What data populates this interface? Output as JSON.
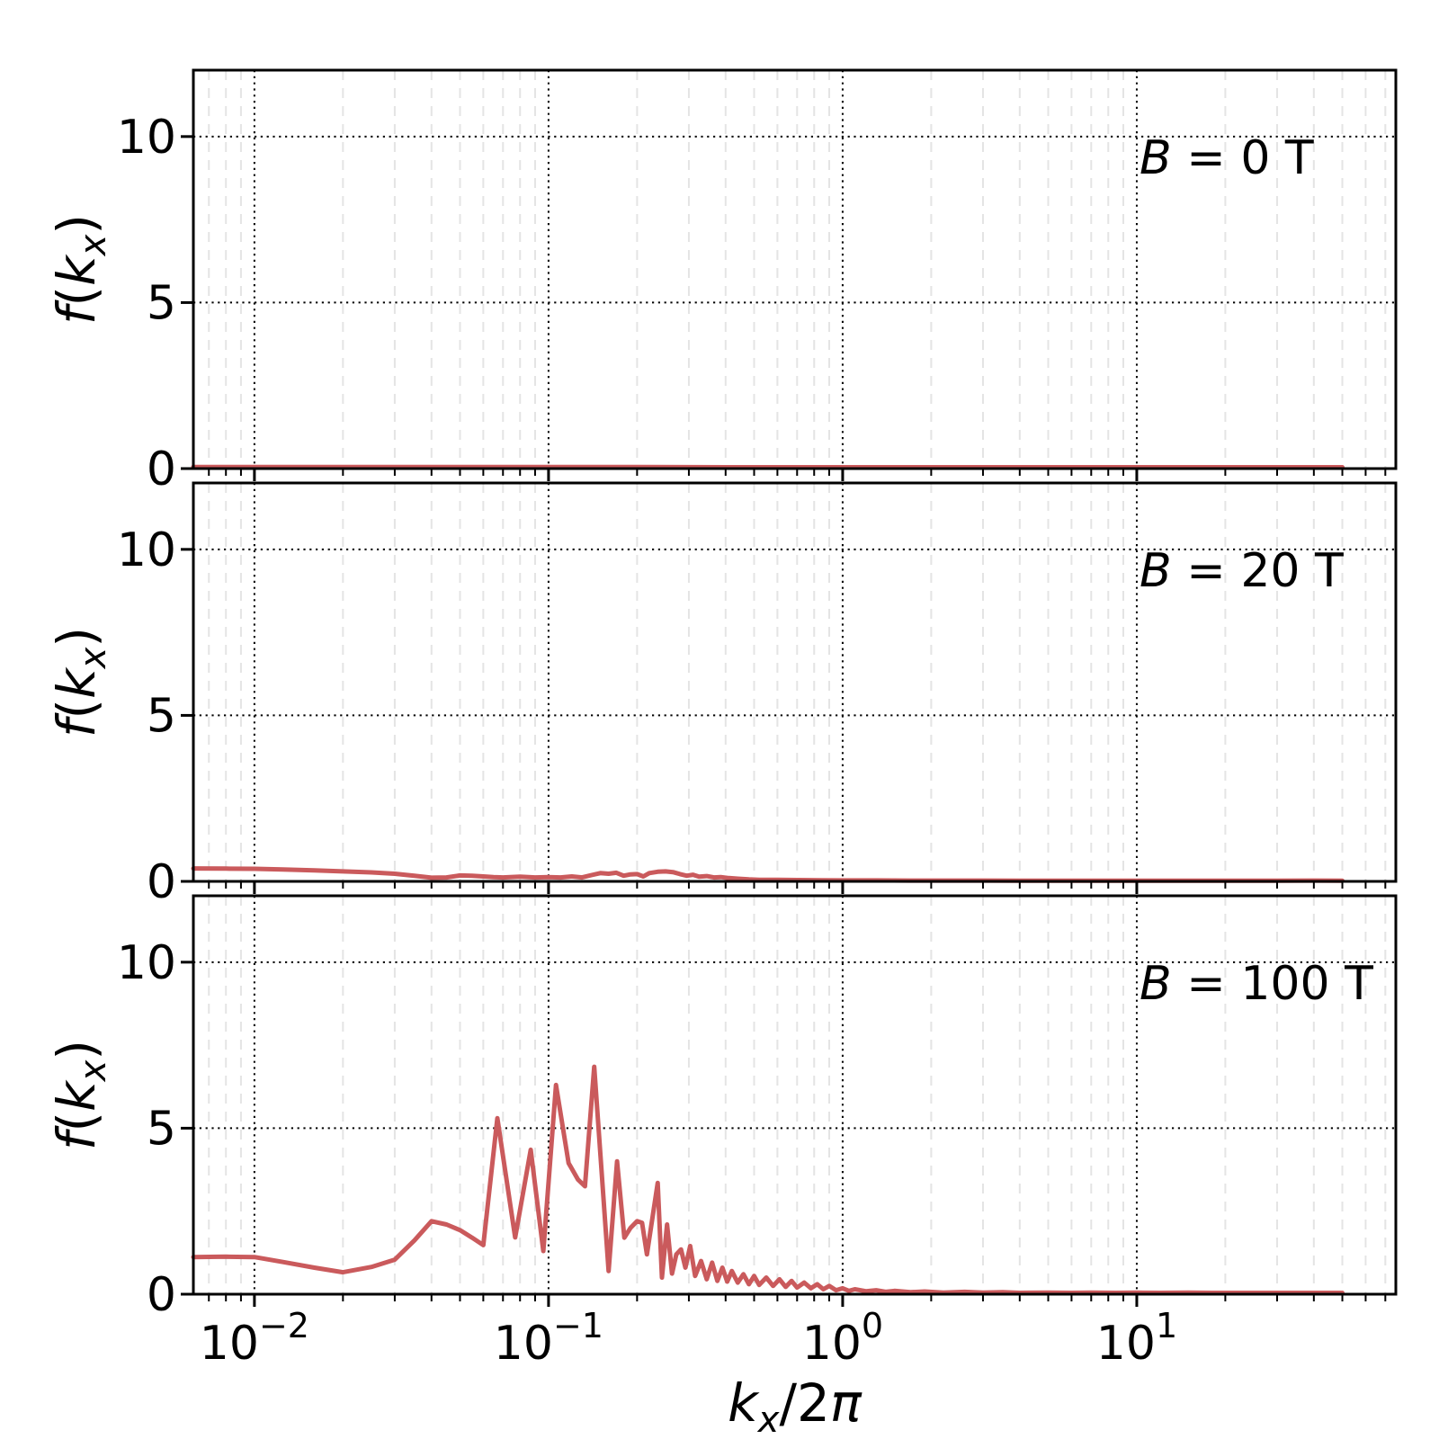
{
  "figure": {
    "background": "#ffffff",
    "axis_color": "#000000",
    "line_color": "#ca5a5c",
    "grid_major_color": "#000000",
    "grid_minor_color": "#e4e4e4",
    "xlabel_text": "k_x/2π",
    "ylabel_text": "f(k_x)",
    "xlabel_parts": [
      {
        "t": "k",
        "i": 1
      },
      {
        "t": "x",
        "i": 1,
        "s": "sub"
      },
      {
        "t": "/2",
        "i": 0
      },
      {
        "t": "π",
        "i": 1
      }
    ],
    "ylabel_parts": [
      {
        "t": "f",
        "i": 1
      },
      {
        "t": "(",
        "i": 0
      },
      {
        "t": "k",
        "i": 1
      },
      {
        "t": "x",
        "i": 1,
        "s": "sub"
      },
      {
        "t": ")",
        "i": 0
      }
    ],
    "x_ticks": [
      {
        "value": 0.01,
        "mantissa": "10",
        "exp": "−2"
      },
      {
        "value": 0.1,
        "mantissa": "10",
        "exp": "−1"
      },
      {
        "value": 1,
        "mantissa": "10",
        "exp": "0"
      },
      {
        "value": 10,
        "mantissa": "10",
        "exp": "1"
      }
    ],
    "y_ticks": [
      {
        "value": 0,
        "label": "0"
      },
      {
        "value": 5,
        "label": "5"
      },
      {
        "value": 10,
        "label": "10"
      }
    ]
  },
  "chart_data": [
    {
      "type": "line",
      "xscale": "log",
      "xlim": [
        0.0062,
        76
      ],
      "ylim": [
        0,
        12
      ],
      "grid": true,
      "annotation_text": "B = 0 T",
      "annotation_parts": [
        {
          "t": "B",
          "i": 1
        },
        {
          "t": " = 0 T",
          "i": 0
        }
      ],
      "points": [
        [
          0.0062,
          0.05
        ],
        [
          0.01,
          0.05
        ],
        [
          0.02,
          0.05
        ],
        [
          0.04,
          0.05
        ],
        [
          0.07,
          0.045
        ],
        [
          0.1,
          0.05
        ],
        [
          0.2,
          0.045
        ],
        [
          0.4,
          0.04
        ],
        [
          0.7,
          0.04
        ],
        [
          1,
          0.04
        ],
        [
          2,
          0.04
        ],
        [
          4,
          0.04
        ],
        [
          7,
          0.04
        ],
        [
          10,
          0.04
        ],
        [
          20,
          0.04
        ],
        [
          35,
          0.04
        ],
        [
          50,
          0.04
        ]
      ]
    },
    {
      "type": "line",
      "xscale": "log",
      "xlim": [
        0.0062,
        76
      ],
      "ylim": [
        0,
        12
      ],
      "grid": true,
      "annotation_text": "B = 20 T",
      "annotation_parts": [
        {
          "t": "B",
          "i": 1
        },
        {
          "t": " = 20 T",
          "i": 0
        }
      ],
      "points": [
        [
          0.0062,
          0.39
        ],
        [
          0.008,
          0.385
        ],
        [
          0.01,
          0.38
        ],
        [
          0.0125,
          0.36
        ],
        [
          0.016,
          0.33
        ],
        [
          0.02,
          0.3
        ],
        [
          0.025,
          0.27
        ],
        [
          0.03,
          0.23
        ],
        [
          0.035,
          0.17
        ],
        [
          0.04,
          0.11
        ],
        [
          0.045,
          0.12
        ],
        [
          0.05,
          0.18
        ],
        [
          0.055,
          0.17
        ],
        [
          0.06,
          0.15
        ],
        [
          0.065,
          0.13
        ],
        [
          0.07,
          0.12
        ],
        [
          0.08,
          0.14
        ],
        [
          0.09,
          0.12
        ],
        [
          0.1,
          0.13
        ],
        [
          0.11,
          0.12
        ],
        [
          0.12,
          0.15
        ],
        [
          0.13,
          0.12
        ],
        [
          0.14,
          0.19
        ],
        [
          0.15,
          0.25
        ],
        [
          0.16,
          0.23
        ],
        [
          0.17,
          0.26
        ],
        [
          0.18,
          0.17
        ],
        [
          0.19,
          0.21
        ],
        [
          0.2,
          0.22
        ],
        [
          0.21,
          0.15
        ],
        [
          0.22,
          0.25
        ],
        [
          0.235,
          0.29
        ],
        [
          0.25,
          0.3
        ],
        [
          0.265,
          0.28
        ],
        [
          0.28,
          0.22
        ],
        [
          0.295,
          0.17
        ],
        [
          0.31,
          0.2
        ],
        [
          0.325,
          0.14
        ],
        [
          0.345,
          0.16
        ],
        [
          0.365,
          0.12
        ],
        [
          0.385,
          0.13
        ],
        [
          0.41,
          0.1
        ],
        [
          0.44,
          0.08
        ],
        [
          0.48,
          0.06
        ],
        [
          0.52,
          0.05
        ],
        [
          0.6,
          0.045
        ],
        [
          0.7,
          0.04
        ],
        [
          0.85,
          0.035
        ],
        [
          1.0,
          0.03
        ],
        [
          1.3,
          0.03
        ],
        [
          1.7,
          0.025
        ],
        [
          2.2,
          0.025
        ],
        [
          3.0,
          0.025
        ],
        [
          4.0,
          0.02
        ],
        [
          6.0,
          0.02
        ],
        [
          8.0,
          0.02
        ],
        [
          10,
          0.02
        ],
        [
          15,
          0.02
        ],
        [
          20,
          0.02
        ],
        [
          30,
          0.02
        ],
        [
          40,
          0.025
        ],
        [
          50,
          0.02
        ]
      ]
    },
    {
      "type": "line",
      "xscale": "log",
      "xlim": [
        0.0062,
        76
      ],
      "ylim": [
        0,
        12
      ],
      "grid": true,
      "annotation_text": "B = 100 T",
      "annotation_parts": [
        {
          "t": "B",
          "i": 1
        },
        {
          "t": " = 100 T",
          "i": 0
        }
      ],
      "points": [
        [
          0.0062,
          1.12
        ],
        [
          0.008,
          1.13
        ],
        [
          0.01,
          1.12
        ],
        [
          0.0125,
          0.97
        ],
        [
          0.016,
          0.8
        ],
        [
          0.02,
          0.66
        ],
        [
          0.025,
          0.82
        ],
        [
          0.03,
          1.04
        ],
        [
          0.035,
          1.62
        ],
        [
          0.04,
          2.2
        ],
        [
          0.045,
          2.1
        ],
        [
          0.05,
          1.93
        ],
        [
          0.055,
          1.7
        ],
        [
          0.06,
          1.48
        ],
        [
          0.067,
          5.3
        ],
        [
          0.077,
          1.71
        ],
        [
          0.087,
          4.35
        ],
        [
          0.096,
          1.3
        ],
        [
          0.106,
          6.3
        ],
        [
          0.117,
          3.95
        ],
        [
          0.126,
          3.45
        ],
        [
          0.133,
          3.25
        ],
        [
          0.143,
          6.85
        ],
        [
          0.16,
          0.7
        ],
        [
          0.171,
          4.0
        ],
        [
          0.181,
          1.7
        ],
        [
          0.19,
          2.0
        ],
        [
          0.2,
          2.2
        ],
        [
          0.208,
          2.15
        ],
        [
          0.216,
          1.2
        ],
        [
          0.235,
          3.35
        ],
        [
          0.243,
          0.5
        ],
        [
          0.253,
          2.1
        ],
        [
          0.263,
          0.62
        ],
        [
          0.272,
          1.2
        ],
        [
          0.282,
          1.35
        ],
        [
          0.292,
          0.8
        ],
        [
          0.303,
          1.45
        ],
        [
          0.315,
          0.55
        ],
        [
          0.33,
          1.0
        ],
        [
          0.345,
          0.45
        ],
        [
          0.36,
          0.95
        ],
        [
          0.375,
          0.4
        ],
        [
          0.39,
          0.8
        ],
        [
          0.405,
          0.38
        ],
        [
          0.42,
          0.7
        ],
        [
          0.44,
          0.35
        ],
        [
          0.46,
          0.6
        ],
        [
          0.48,
          0.3
        ],
        [
          0.5,
          0.55
        ],
        [
          0.52,
          0.28
        ],
        [
          0.55,
          0.5
        ],
        [
          0.58,
          0.25
        ],
        [
          0.61,
          0.45
        ],
        [
          0.64,
          0.22
        ],
        [
          0.67,
          0.4
        ],
        [
          0.7,
          0.2
        ],
        [
          0.74,
          0.35
        ],
        [
          0.78,
          0.18
        ],
        [
          0.82,
          0.3
        ],
        [
          0.86,
          0.15
        ],
        [
          0.9,
          0.25
        ],
        [
          0.95,
          0.12
        ],
        [
          1.0,
          0.18
        ],
        [
          1.05,
          0.1
        ],
        [
          1.1,
          0.15
        ],
        [
          1.2,
          0.09
        ],
        [
          1.3,
          0.12
        ],
        [
          1.4,
          0.07
        ],
        [
          1.5,
          0.1
        ],
        [
          1.7,
          0.06
        ],
        [
          1.9,
          0.08
        ],
        [
          2.2,
          0.05
        ],
        [
          2.6,
          0.07
        ],
        [
          3.0,
          0.05
        ],
        [
          3.5,
          0.06
        ],
        [
          4.0,
          0.04
        ],
        [
          5.0,
          0.05
        ],
        [
          6.0,
          0.04
        ],
        [
          7.0,
          0.05
        ],
        [
          8.5,
          0.04
        ],
        [
          10.0,
          0.045
        ],
        [
          12.0,
          0.04
        ],
        [
          15.0,
          0.045
        ],
        [
          18.0,
          0.04
        ],
        [
          22.0,
          0.04
        ],
        [
          27.0,
          0.04
        ],
        [
          33.0,
          0.04
        ],
        [
          40.0,
          0.04
        ],
        [
          50.0,
          0.04
        ]
      ]
    }
  ]
}
